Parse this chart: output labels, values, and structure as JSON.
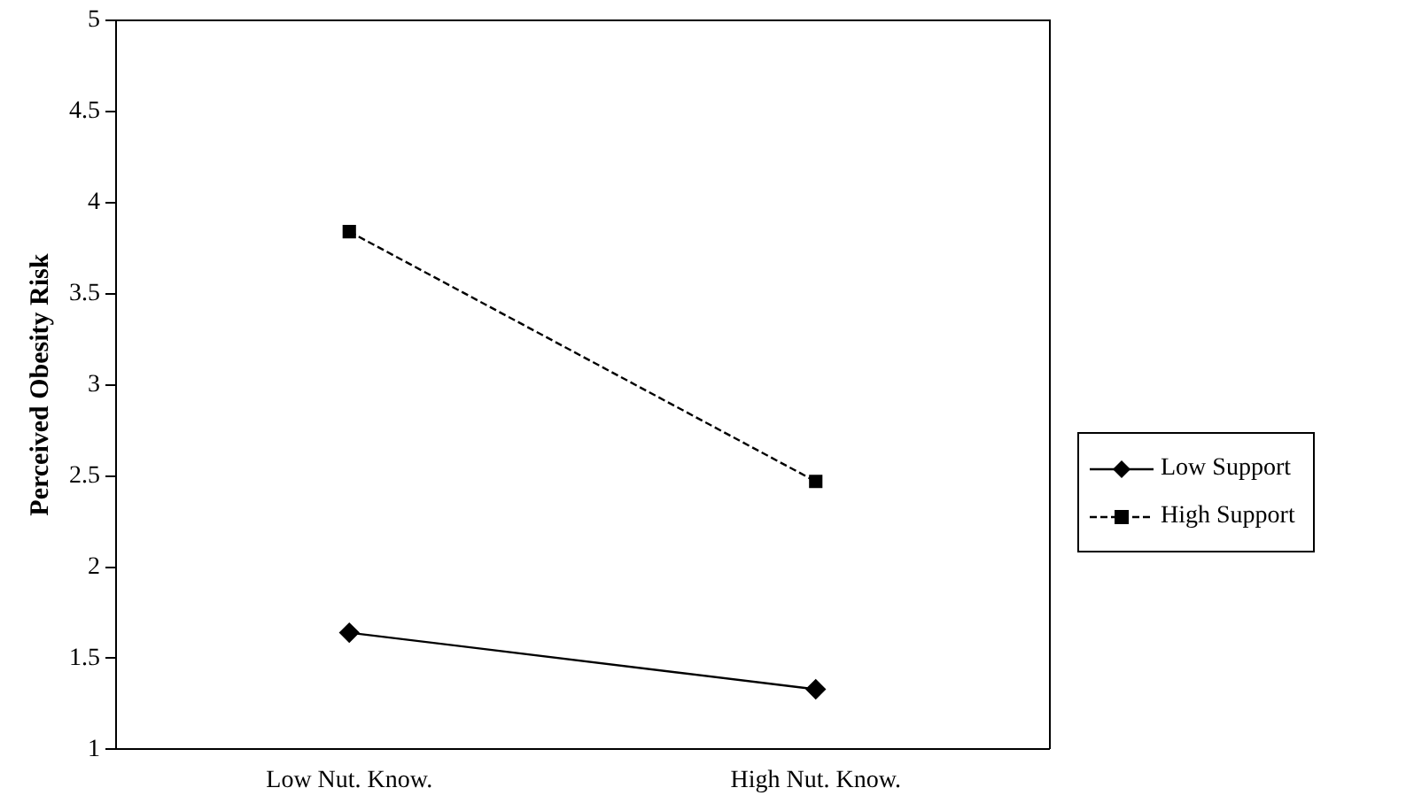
{
  "chart_data": {
    "type": "line",
    "ylabel": "Perceived Obesity Risk",
    "categories": [
      "Low Nut. Know.",
      "High Nut. Know."
    ],
    "series": [
      {
        "name": "Low Support",
        "color": "#000000",
        "values": [
          1.64,
          1.33
        ],
        "marker": "diamond",
        "line_style": "solid"
      },
      {
        "name": "High Support",
        "color": "#000000",
        "values": [
          3.84,
          2.47
        ],
        "marker": "square",
        "line_style": "dashed"
      }
    ],
    "ylim": [
      1,
      5
    ],
    "yticks": [
      1,
      1.5,
      2,
      2.5,
      3,
      3.5,
      4,
      4.5,
      5
    ],
    "grid": false,
    "legend": "right"
  }
}
